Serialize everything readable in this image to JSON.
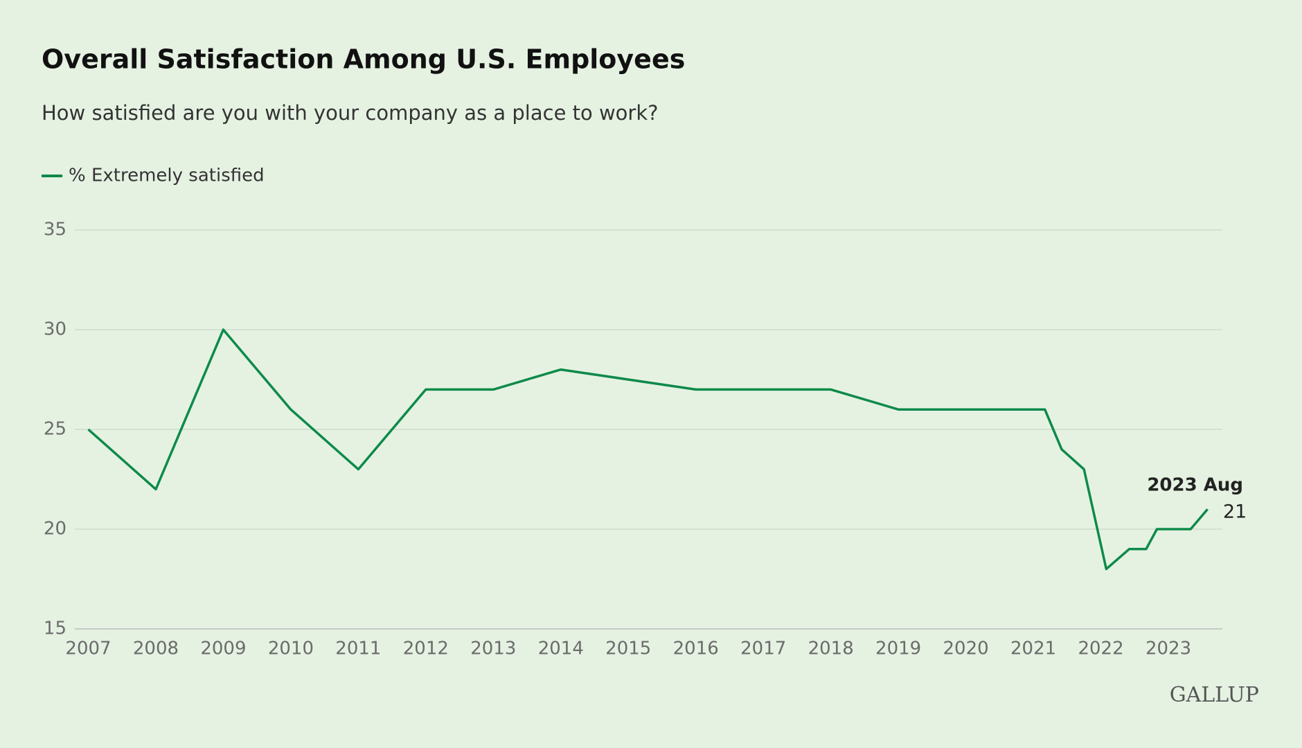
{
  "chart_data": {
    "type": "line",
    "title": "Overall Satisfaction Among U.S. Employees",
    "subtitle": "How satisfied are you with your company as a place to work?",
    "x": [
      2007,
      2008,
      2009,
      2010,
      2011,
      2012,
      2013,
      2014,
      2016,
      2018,
      2019,
      2021.17,
      2021.42,
      2021.75,
      2022.08,
      2022.42,
      2022.67,
      2022.83,
      2023.33,
      2023.58
    ],
    "series": [
      {
        "name": "% Extremely satisfied",
        "color": "#0e8a4a",
        "values": [
          25,
          22,
          30,
          26,
          23,
          27,
          27,
          28,
          27,
          27,
          26,
          26,
          24,
          23,
          18,
          19,
          19,
          20,
          20,
          21
        ]
      }
    ],
    "annotation": "2023 Aug",
    "xlim": [
      2006.8,
      2023.8
    ],
    "xticks": [
      2007,
      2008,
      2009,
      2010,
      2011,
      2012,
      2013,
      2014,
      2015,
      2016,
      2017,
      2018,
      2019,
      2020,
      2021,
      2022,
      2023
    ],
    "ylim": [
      15,
      35
    ],
    "yticks": [
      15,
      20,
      25,
      30,
      35
    ],
    "grid": true,
    "logo": "GALLUP"
  }
}
